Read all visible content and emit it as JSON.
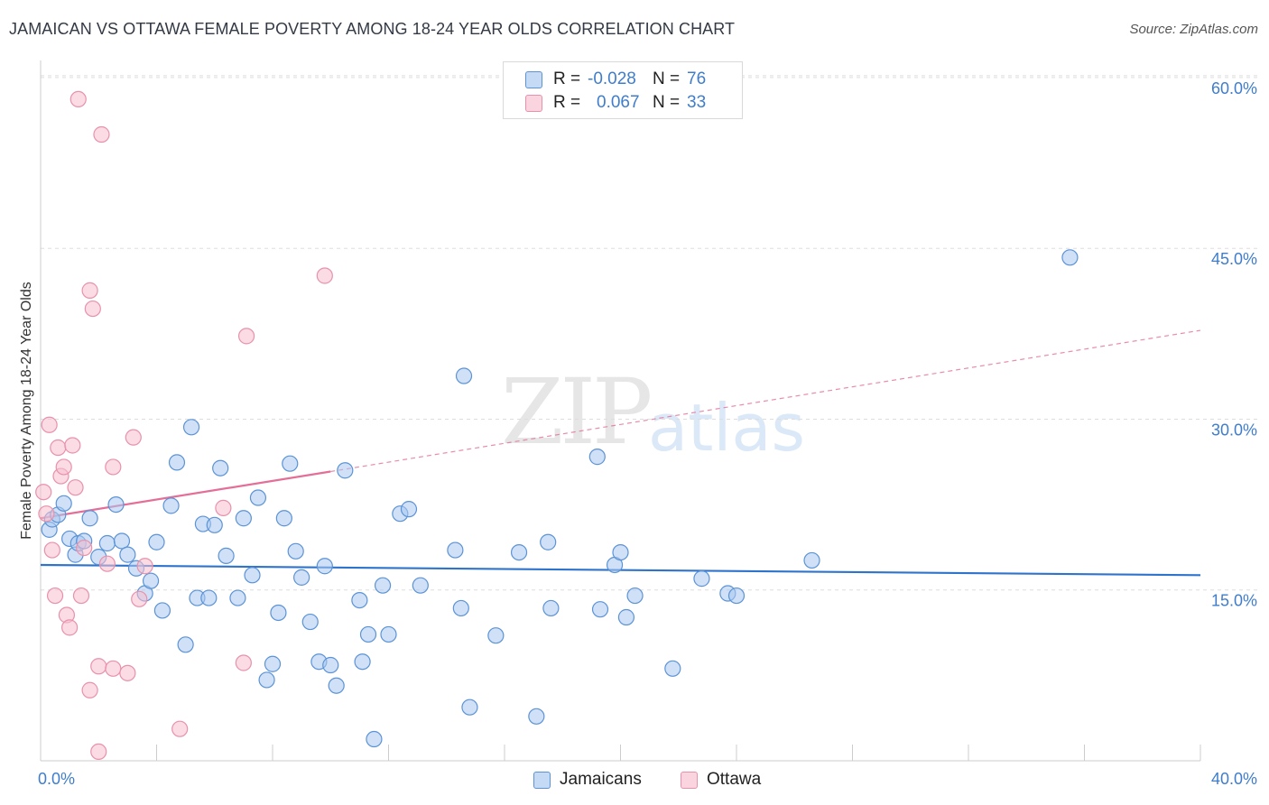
{
  "title": "JAMAICAN VS OTTAWA FEMALE POVERTY AMONG 18-24 YEAR OLDS CORRELATION CHART",
  "source": "Source: ZipAtlas.com",
  "watermark": {
    "zip": "ZIP",
    "atlas": "atlas"
  },
  "colors": {
    "jamaicans_fill": "#a9c8f0",
    "jamaicans_stroke": "#5b93d6",
    "jamaicans_line": "#2f74cc",
    "ottawa_fill": "#f7c0d0",
    "ottawa_stroke": "#e891ac",
    "ottawa_line": "#e46e98",
    "tick_text": "#3f7dcc",
    "grid": "#dddddd"
  },
  "legend": {
    "rows": [
      {
        "r_label": "R =",
        "r_value": "-0.028",
        "n_label": "N =",
        "n_value": "76"
      },
      {
        "r_label": "R =",
        "r_value": "0.067",
        "n_label": "N =",
        "n_value": "33"
      }
    ]
  },
  "bottom_legend": {
    "series1": "Jamaicans",
    "series2": "Ottawa"
  },
  "chart_data": {
    "type": "scatter",
    "title": "JAMAICAN VS OTTAWA FEMALE POVERTY AMONG 18-24 YEAR OLDS CORRELATION CHART",
    "xlabel": "",
    "ylabel": "Female Poverty Among 18-24 Year Olds",
    "xlim": [
      0,
      40
    ],
    "ylim": [
      0,
      61.5
    ],
    "x_tick_labels": [
      "0.0%",
      "40.0%"
    ],
    "y_ticks": [
      15,
      30,
      45,
      60
    ],
    "y_tick_labels": [
      "15.0%",
      "30.0%",
      "45.0%",
      "60.0%"
    ],
    "grid": true,
    "legend_position": "top-center",
    "series": [
      {
        "name": "Jamaicans",
        "r": -0.028,
        "n": 76,
        "trend": {
          "x": [
            0,
            40
          ],
          "y": [
            17.2,
            16.3
          ],
          "dashed_extension": false
        },
        "points": [
          [
            0.3,
            20.3
          ],
          [
            0.4,
            21.2
          ],
          [
            0.6,
            21.6
          ],
          [
            0.8,
            22.6
          ],
          [
            1.0,
            19.5
          ],
          [
            1.2,
            18.1
          ],
          [
            1.3,
            19.1
          ],
          [
            1.5,
            19.3
          ],
          [
            1.7,
            21.3
          ],
          [
            2.0,
            17.9
          ],
          [
            2.3,
            19.1
          ],
          [
            2.6,
            22.5
          ],
          [
            2.8,
            19.3
          ],
          [
            3.0,
            18.1
          ],
          [
            3.3,
            16.9
          ],
          [
            3.6,
            14.7
          ],
          [
            3.8,
            15.8
          ],
          [
            4.0,
            19.2
          ],
          [
            4.2,
            13.2
          ],
          [
            4.5,
            22.4
          ],
          [
            4.7,
            26.2
          ],
          [
            5.0,
            10.2
          ],
          [
            5.2,
            29.3
          ],
          [
            5.4,
            14.3
          ],
          [
            5.6,
            20.8
          ],
          [
            5.8,
            14.3
          ],
          [
            6.0,
            20.7
          ],
          [
            6.2,
            25.7
          ],
          [
            6.4,
            18.0
          ],
          [
            6.8,
            14.3
          ],
          [
            7.0,
            21.3
          ],
          [
            7.3,
            16.3
          ],
          [
            7.5,
            23.1
          ],
          [
            7.8,
            7.1
          ],
          [
            8.0,
            8.5
          ],
          [
            8.2,
            13.0
          ],
          [
            8.4,
            21.3
          ],
          [
            8.6,
            26.1
          ],
          [
            8.8,
            18.4
          ],
          [
            9.0,
            16.1
          ],
          [
            9.3,
            12.2
          ],
          [
            9.6,
            8.7
          ],
          [
            9.8,
            17.1
          ],
          [
            10.0,
            8.4
          ],
          [
            10.2,
            6.6
          ],
          [
            10.5,
            25.5
          ],
          [
            11.0,
            14.1
          ],
          [
            11.1,
            8.7
          ],
          [
            11.3,
            11.1
          ],
          [
            11.5,
            1.9
          ],
          [
            11.8,
            15.4
          ],
          [
            12.0,
            11.1
          ],
          [
            12.4,
            21.7
          ],
          [
            12.7,
            22.1
          ],
          [
            13.1,
            15.4
          ],
          [
            14.3,
            18.5
          ],
          [
            14.5,
            13.4
          ],
          [
            14.6,
            33.8
          ],
          [
            14.8,
            4.7
          ],
          [
            15.7,
            11.0
          ],
          [
            16.5,
            18.3
          ],
          [
            17.1,
            3.9
          ],
          [
            17.5,
            19.2
          ],
          [
            17.6,
            13.4
          ],
          [
            19.2,
            26.7
          ],
          [
            19.3,
            13.3
          ],
          [
            19.8,
            17.2
          ],
          [
            20.0,
            18.3
          ],
          [
            20.2,
            12.6
          ],
          [
            20.5,
            14.5
          ],
          [
            21.8,
            8.1
          ],
          [
            22.8,
            16.0
          ],
          [
            23.7,
            14.7
          ],
          [
            24.0,
            14.5
          ],
          [
            26.6,
            17.6
          ],
          [
            35.5,
            44.2
          ]
        ]
      },
      {
        "name": "Ottawa",
        "r": 0.067,
        "n": 33,
        "trend": {
          "x": [
            0,
            10
          ],
          "y": [
            21.3,
            25.4
          ],
          "dashed_extension": true,
          "extension_to": [
            40,
            37.8
          ]
        },
        "points": [
          [
            0.1,
            23.6
          ],
          [
            0.2,
            21.7
          ],
          [
            0.3,
            29.5
          ],
          [
            0.4,
            18.5
          ],
          [
            0.5,
            14.5
          ],
          [
            0.6,
            27.5
          ],
          [
            0.7,
            25.0
          ],
          [
            0.8,
            25.8
          ],
          [
            0.9,
            12.8
          ],
          [
            1.0,
            11.7
          ],
          [
            1.1,
            27.7
          ],
          [
            1.2,
            24.0
          ],
          [
            1.3,
            58.1
          ],
          [
            1.4,
            14.5
          ],
          [
            1.5,
            18.7
          ],
          [
            1.7,
            6.2
          ],
          [
            1.7,
            41.3
          ],
          [
            1.8,
            39.7
          ],
          [
            2.0,
            0.8
          ],
          [
            2.0,
            8.3
          ],
          [
            2.1,
            55.0
          ],
          [
            2.3,
            17.3
          ],
          [
            2.5,
            25.8
          ],
          [
            2.5,
            8.1
          ],
          [
            3.0,
            7.7
          ],
          [
            3.2,
            28.4
          ],
          [
            3.4,
            14.2
          ],
          [
            3.6,
            17.1
          ],
          [
            4.8,
            2.8
          ],
          [
            6.3,
            22.2
          ],
          [
            7.0,
            8.6
          ],
          [
            7.1,
            37.3
          ],
          [
            9.8,
            42.6
          ]
        ]
      }
    ]
  }
}
